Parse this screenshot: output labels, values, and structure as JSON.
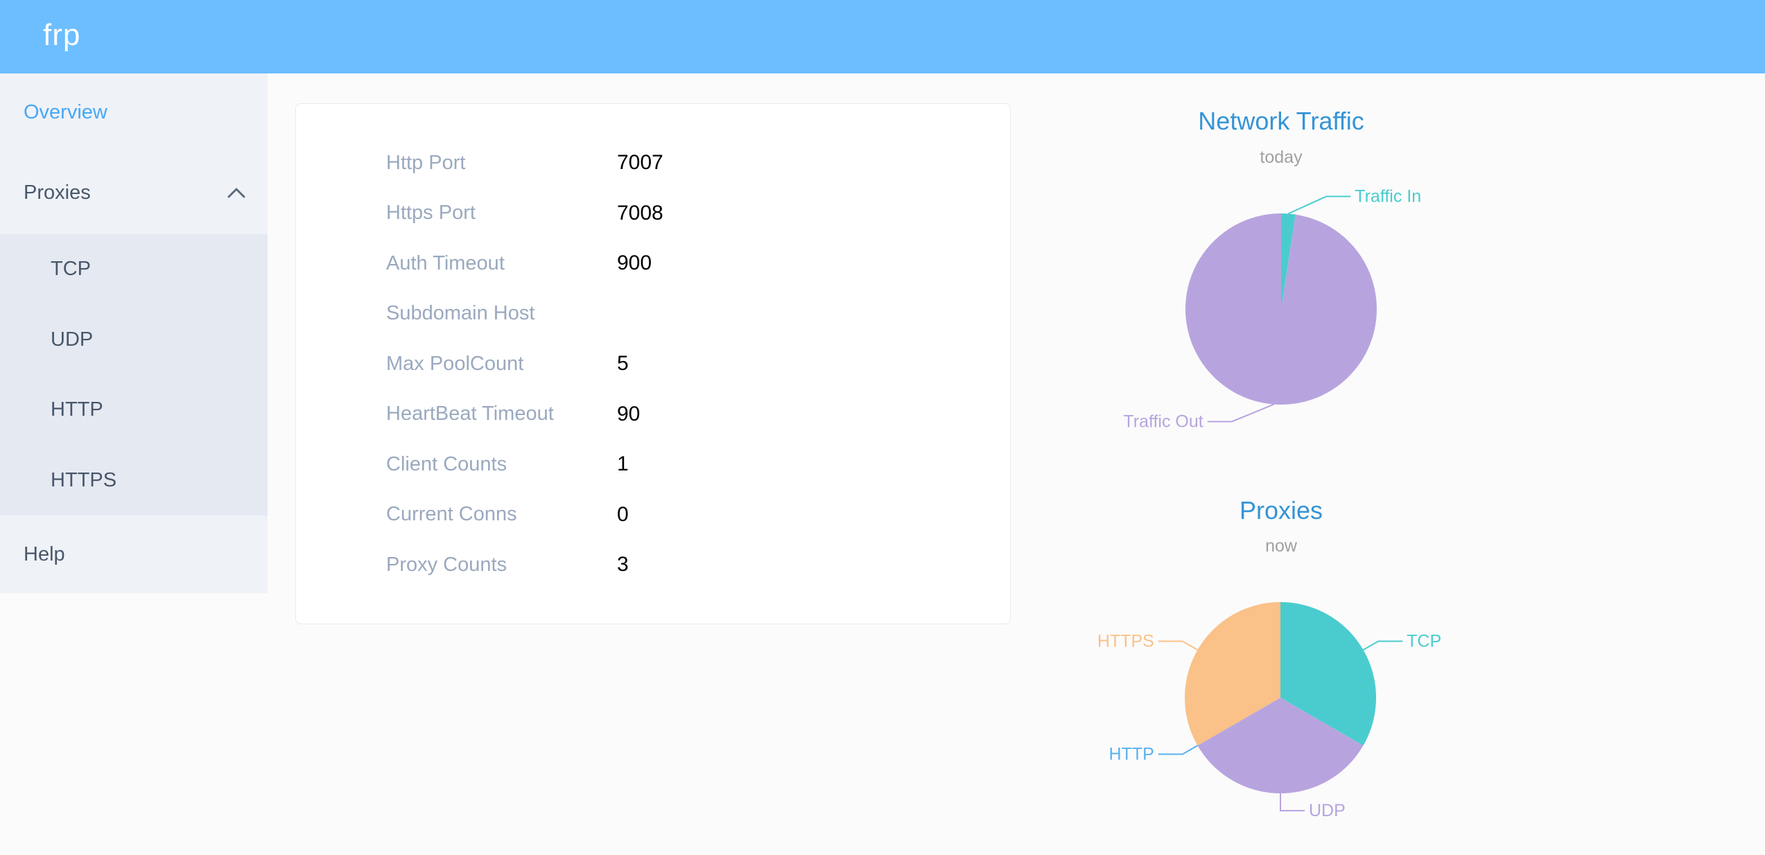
{
  "header": {
    "logo": "frp"
  },
  "sidebar": {
    "items": [
      {
        "label": "Overview",
        "active": true
      },
      {
        "label": "Proxies",
        "expanded": true,
        "children": [
          "TCP",
          "UDP",
          "HTTP",
          "HTTPS"
        ]
      },
      {
        "label": "Help"
      }
    ]
  },
  "server_info": {
    "rows": [
      {
        "label": "Http Port",
        "value": "7007"
      },
      {
        "label": "Https Port",
        "value": "7008"
      },
      {
        "label": "Auth Timeout",
        "value": "900"
      },
      {
        "label": "Subdomain Host",
        "value": ""
      },
      {
        "label": "Max PoolCount",
        "value": "5"
      },
      {
        "label": "HeartBeat Timeout",
        "value": "90"
      },
      {
        "label": "Client Counts",
        "value": "1"
      },
      {
        "label": "Current Conns",
        "value": "0"
      },
      {
        "label": "Proxy Counts",
        "value": "3"
      }
    ]
  },
  "colors": {
    "header_bg": "#6cbeff",
    "sidebar_bg": "#eff2f7",
    "submenu_bg": "#e5e9f2",
    "menu_active": "#46a8f7",
    "menu_text": "#48576a",
    "chart_title": "#3594d6",
    "chart_subtitle": "#a0a0a0",
    "teal": "#4accce",
    "purple": "#b7a4df",
    "orange": "#fac188",
    "blue": "#5ab1ef"
  },
  "chart_data": [
    {
      "type": "pie",
      "title": "Network Traffic",
      "subtitle": "today",
      "legend_position": "none",
      "slices": [
        {
          "label": "Traffic In",
          "value": 2.4,
          "unit": "percent-estimate",
          "color": "#4accce",
          "label_dx": 53
        },
        {
          "label": "Traffic Out",
          "value": 97.6,
          "unit": "percent-estimate",
          "color": "#b7a4df",
          "label_dx": -59
        }
      ]
    },
    {
      "type": "pie",
      "title": "Proxies",
      "subtitle": "now",
      "legend_position": "none",
      "slices": [
        {
          "label": "TCP",
          "value": 1,
          "color": "#4accce"
        },
        {
          "label": "UDP",
          "value": 1,
          "color": "#b7a4df"
        },
        {
          "label": "HTTP",
          "value": 0,
          "color": "#5ab1ef"
        },
        {
          "label": "HTTPS",
          "value": 1,
          "color": "#fac188"
        }
      ]
    }
  ]
}
